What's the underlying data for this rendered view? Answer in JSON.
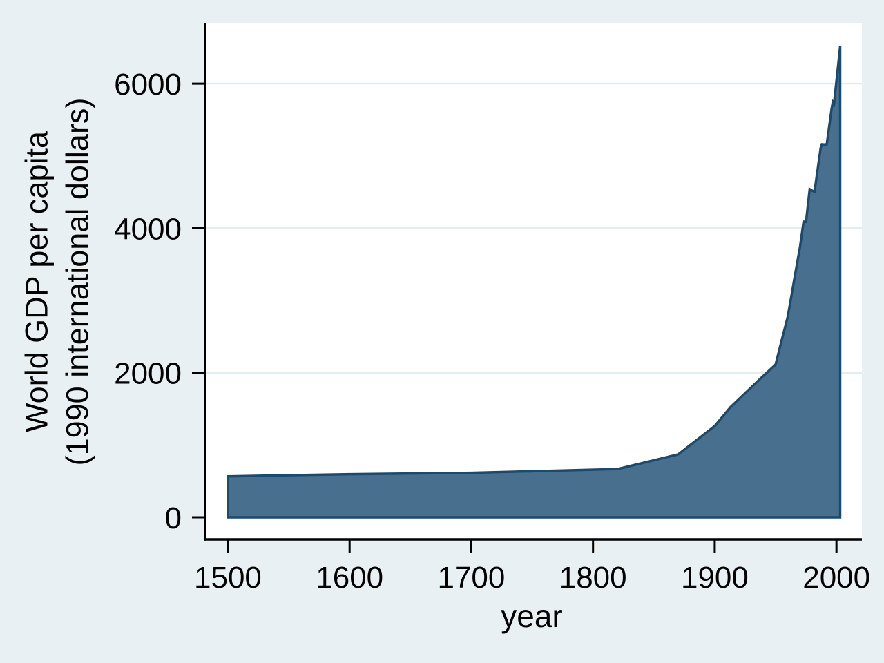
{
  "figure": {
    "background_color": "#E9F0F3",
    "plot_background_color": "#FFFFFF",
    "gridline_color": "#E3ECF1",
    "axis_color": "#000000",
    "text_color": "#000000"
  },
  "chart_data": {
    "type": "area",
    "title": "",
    "xlabel": "year",
    "ylabel": "World GDP per capita (1990 international dollars)",
    "ylabel_lines": [
      "World GDP per capita",
      "(1990 international dollars)"
    ],
    "x_ticks": [
      1500,
      1600,
      1700,
      1800,
      1900,
      2000
    ],
    "y_ticks": [
      0,
      2000,
      4000,
      6000
    ],
    "grid_y_values": [
      2000,
      4000,
      6000
    ],
    "xlim": [
      1481.3,
      2020.9
    ],
    "ylim": [
      -306,
      6842
    ],
    "series": [
      {
        "name": "World GDP per capita",
        "fill_color": "#48708E",
        "line_color": "#1B4A6F",
        "baseline": 0,
        "points": [
          [
            1500,
            566
          ],
          [
            1600,
            596
          ],
          [
            1700,
            615
          ],
          [
            1820,
            667
          ],
          [
            1870,
            870
          ],
          [
            1900,
            1262
          ],
          [
            1913,
            1525
          ],
          [
            1940,
            1958
          ],
          [
            1950,
            2113
          ],
          [
            1955,
            2450
          ],
          [
            1960,
            2777
          ],
          [
            1965,
            3260
          ],
          [
            1970,
            3736
          ],
          [
            1973,
            4091
          ],
          [
            1975,
            4088
          ],
          [
            1978,
            4540
          ],
          [
            1980,
            4520
          ],
          [
            1982,
            4505
          ],
          [
            1987,
            5110
          ],
          [
            1988,
            5160
          ],
          [
            1990,
            5157
          ],
          [
            1992,
            5160
          ],
          [
            1996,
            5650
          ],
          [
            1997,
            5745
          ],
          [
            1998,
            5720
          ],
          [
            2000,
            6038
          ],
          [
            2003,
            6516
          ]
        ]
      }
    ]
  }
}
